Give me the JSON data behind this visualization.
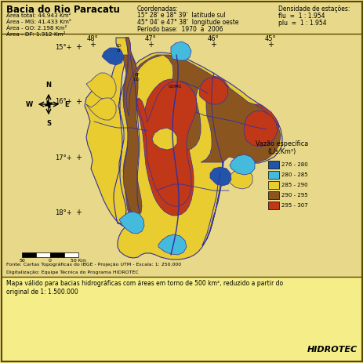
{
  "title": "Bacia do Rio Paracatu",
  "bg_color": "#E8D98A",
  "header_text": [
    "Área total: 44.943 Km²",
    "Área - MG: 41.433 Km²",
    "Área - GO: 2.198 Km²",
    "Área - DF: 1.312 Km²"
  ],
  "coord_title": "Coordenadas:",
  "coord_lines": [
    "15° 28' e 18° 39'  latitude sul",
    "45° 04' e 47° 38'  longitude oeste"
  ],
  "periodo": "Período base:  1970  a  2006",
  "densidade_title": "Densidade de estações:",
  "densidade_lines": [
    "flu  =  1 : 1.954",
    "plu  =  1 : 1.954"
  ],
  "lat_labels": [
    "15°+",
    "16°+",
    "17°+",
    "18°+"
  ],
  "lon_labels": [
    "48°",
    "47°",
    "46°",
    "45°"
  ],
  "legend_title": "Vazão específica",
  "legend_unit": "(L/s.Km²)",
  "legend_items": [
    {
      "label": "276 - 280",
      "color": "#2255AA"
    },
    {
      "label": "280 - 285",
      "color": "#44BBDD"
    },
    {
      "label": "285 - 290",
      "color": "#E8CC30"
    },
    {
      "label": "290 - 295",
      "color": "#8B5520"
    },
    {
      "label": "295 - 307",
      "color": "#C03818"
    }
  ],
  "fonte_lines": [
    "Fonte: Cartas Topográficas do IBGE - Projeção UTM - Escala: 1: 250.000",
    "Digitalização: Equipe Técnica do Programa HIDROTEC"
  ],
  "footer_text": "Mapa válido para bacias hidrográficas com áreas em torno de 500 km², reduzido a partir do",
  "footer_text2": "original de 1: 1.500.000",
  "hidrotec": "HIDROTEC"
}
